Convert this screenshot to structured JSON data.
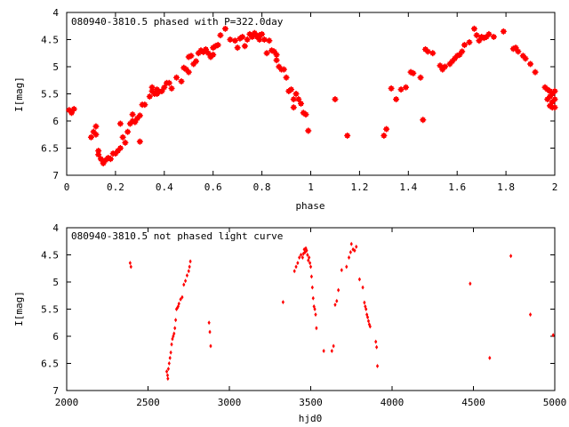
{
  "chart_data": [
    {
      "type": "scatter",
      "title": "080940-3810.5 phased with P=322.0day",
      "xlabel": "phase",
      "ylabel": "I[mag]",
      "xlim": [
        0,
        2
      ],
      "ylim": [
        7,
        4
      ],
      "y_inverted": true,
      "xticks": [
        "0",
        "0.2",
        "0.4",
        "0.6",
        "0.8",
        "1",
        "1.2",
        "1.4",
        "1.6",
        "1.8",
        "2"
      ],
      "yticks": [
        "4",
        "4.5",
        "5",
        "5.5",
        "6",
        "6.5",
        "7"
      ],
      "marker": "star",
      "color": "#ff0000",
      "grid": false,
      "points": [
        [
          0.01,
          5.8
        ],
        [
          0.02,
          5.85
        ],
        [
          0.03,
          5.78
        ],
        [
          0.1,
          6.3
        ],
        [
          0.11,
          6.2
        ],
        [
          0.12,
          6.1
        ],
        [
          0.12,
          6.25
        ],
        [
          0.13,
          6.55
        ],
        [
          0.13,
          6.62
        ],
        [
          0.14,
          6.7
        ],
        [
          0.15,
          6.75
        ],
        [
          0.15,
          6.78
        ],
        [
          0.16,
          6.72
        ],
        [
          0.17,
          6.68
        ],
        [
          0.18,
          6.7
        ],
        [
          0.19,
          6.6
        ],
        [
          0.2,
          6.6
        ],
        [
          0.21,
          6.55
        ],
        [
          0.22,
          6.5
        ],
        [
          0.22,
          6.05
        ],
        [
          0.23,
          6.3
        ],
        [
          0.24,
          6.4
        ],
        [
          0.25,
          6.2
        ],
        [
          0.26,
          6.05
        ],
        [
          0.27,
          6.0
        ],
        [
          0.27,
          5.88
        ],
        [
          0.28,
          6.02
        ],
        [
          0.29,
          5.95
        ],
        [
          0.3,
          5.9
        ],
        [
          0.3,
          6.38
        ],
        [
          0.31,
          5.7
        ],
        [
          0.32,
          5.7
        ],
        [
          0.34,
          5.55
        ],
        [
          0.35,
          5.45
        ],
        [
          0.35,
          5.38
        ],
        [
          0.36,
          5.5
        ],
        [
          0.37,
          5.42
        ],
        [
          0.37,
          5.5
        ],
        [
          0.38,
          5.46
        ],
        [
          0.39,
          5.45
        ],
        [
          0.4,
          5.38
        ],
        [
          0.41,
          5.3
        ],
        [
          0.42,
          5.3
        ],
        [
          0.43,
          5.4
        ],
        [
          0.45,
          5.2
        ],
        [
          0.47,
          5.27
        ],
        [
          0.48,
          5.02
        ],
        [
          0.49,
          5.05
        ],
        [
          0.5,
          5.1
        ],
        [
          0.5,
          4.82
        ],
        [
          0.51,
          4.8
        ],
        [
          0.52,
          4.95
        ],
        [
          0.53,
          4.9
        ],
        [
          0.54,
          4.75
        ],
        [
          0.55,
          4.7
        ],
        [
          0.56,
          4.73
        ],
        [
          0.57,
          4.68
        ],
        [
          0.58,
          4.75
        ],
        [
          0.59,
          4.82
        ],
        [
          0.6,
          4.78
        ],
        [
          0.6,
          4.65
        ],
        [
          0.61,
          4.62
        ],
        [
          0.62,
          4.6
        ],
        [
          0.63,
          4.42
        ],
        [
          0.65,
          4.3
        ],
        [
          0.67,
          4.5
        ],
        [
          0.69,
          4.52
        ],
        [
          0.7,
          4.65
        ],
        [
          0.71,
          4.48
        ],
        [
          0.72,
          4.45
        ],
        [
          0.73,
          4.62
        ],
        [
          0.74,
          4.5
        ],
        [
          0.75,
          4.4
        ],
        [
          0.76,
          4.45
        ],
        [
          0.77,
          4.38
        ],
        [
          0.78,
          4.45
        ],
        [
          0.79,
          4.42
        ],
        [
          0.79,
          4.5
        ],
        [
          0.8,
          4.4
        ],
        [
          0.81,
          4.5
        ],
        [
          0.82,
          4.75
        ],
        [
          0.83,
          4.52
        ],
        [
          0.84,
          4.7
        ],
        [
          0.85,
          4.72
        ],
        [
          0.86,
          4.78
        ],
        [
          0.86,
          4.88
        ],
        [
          0.87,
          5.0
        ],
        [
          0.88,
          5.05
        ],
        [
          0.89,
          5.05
        ],
        [
          0.9,
          5.2
        ],
        [
          0.91,
          5.45
        ],
        [
          0.92,
          5.42
        ],
        [
          0.93,
          5.6
        ],
        [
          0.93,
          5.75
        ],
        [
          0.94,
          5.5
        ],
        [
          0.95,
          5.6
        ],
        [
          0.96,
          5.68
        ],
        [
          0.97,
          5.85
        ],
        [
          0.98,
          5.88
        ],
        [
          0.99,
          6.18
        ],
        [
          1.1,
          5.6
        ],
        [
          1.15,
          6.27
        ],
        [
          1.3,
          6.27
        ],
        [
          1.31,
          6.15
        ],
        [
          1.33,
          5.4
        ],
        [
          1.35,
          5.6
        ],
        [
          1.37,
          5.42
        ],
        [
          1.39,
          5.38
        ],
        [
          1.41,
          5.1
        ],
        [
          1.42,
          5.12
        ],
        [
          1.45,
          5.2
        ],
        [
          1.46,
          5.98
        ],
        [
          1.47,
          4.68
        ],
        [
          1.48,
          4.72
        ],
        [
          1.5,
          4.75
        ],
        [
          1.53,
          4.98
        ],
        [
          1.54,
          5.05
        ],
        [
          1.55,
          5.0
        ],
        [
          1.57,
          4.95
        ],
        [
          1.58,
          4.9
        ],
        [
          1.59,
          4.85
        ],
        [
          1.6,
          4.8
        ],
        [
          1.61,
          4.78
        ],
        [
          1.62,
          4.72
        ],
        [
          1.63,
          4.6
        ],
        [
          1.65,
          4.55
        ],
        [
          1.67,
          4.3
        ],
        [
          1.68,
          4.42
        ],
        [
          1.69,
          4.52
        ],
        [
          1.7,
          4.45
        ],
        [
          1.71,
          4.47
        ],
        [
          1.72,
          4.45
        ],
        [
          1.73,
          4.4
        ],
        [
          1.75,
          4.45
        ],
        [
          1.79,
          4.35
        ],
        [
          1.83,
          4.67
        ],
        [
          1.84,
          4.65
        ],
        [
          1.85,
          4.72
        ],
        [
          1.87,
          4.8
        ],
        [
          1.88,
          4.85
        ],
        [
          1.9,
          4.95
        ],
        [
          1.92,
          5.1
        ],
        [
          1.96,
          5.38
        ],
        [
          1.97,
          5.42
        ],
        [
          1.97,
          5.6
        ],
        [
          1.98,
          5.45
        ],
        [
          1.98,
          5.55
        ],
        [
          1.98,
          5.72
        ],
        [
          1.99,
          5.5
        ],
        [
          1.99,
          5.65
        ],
        [
          1.99,
          5.75
        ],
        [
          2.0,
          5.45
        ],
        [
          2.0,
          5.6
        ],
        [
          2.0,
          5.75
        ]
      ]
    },
    {
      "type": "scatter",
      "title": "080940-3810.5 not phased light curve",
      "xlabel": "hjd0",
      "ylabel": "I[mag]",
      "xlim": [
        2000,
        5000
      ],
      "ylim": [
        7,
        4
      ],
      "y_inverted": true,
      "xticks": [
        "2000",
        "2500",
        "3000",
        "3500",
        "4000",
        "4500",
        "5000"
      ],
      "yticks": [
        "4",
        "4.5",
        "5",
        "5.5",
        "6",
        "6.5",
        "7"
      ],
      "marker": "diamond",
      "color": "#ff0000",
      "grid": false,
      "points": [
        [
          2390,
          4.65
        ],
        [
          2395,
          4.72
        ],
        [
          2615,
          6.65
        ],
        [
          2620,
          6.72
        ],
        [
          2622,
          6.78
        ],
        [
          2625,
          6.6
        ],
        [
          2630,
          6.5
        ],
        [
          2635,
          6.4
        ],
        [
          2640,
          6.3
        ],
        [
          2645,
          6.15
        ],
        [
          2650,
          6.05
        ],
        [
          2655,
          6.0
        ],
        [
          2660,
          5.95
        ],
        [
          2665,
          5.85
        ],
        [
          2670,
          5.7
        ],
        [
          2675,
          5.5
        ],
        [
          2680,
          5.48
        ],
        [
          2685,
          5.45
        ],
        [
          2690,
          5.4
        ],
        [
          2700,
          5.32
        ],
        [
          2710,
          5.28
        ],
        [
          2720,
          5.05
        ],
        [
          2730,
          4.98
        ],
        [
          2740,
          4.88
        ],
        [
          2750,
          4.8
        ],
        [
          2755,
          4.72
        ],
        [
          2760,
          4.62
        ],
        [
          2875,
          5.75
        ],
        [
          2880,
          5.92
        ],
        [
          2885,
          6.18
        ],
        [
          3330,
          5.37
        ],
        [
          3400,
          4.8
        ],
        [
          3410,
          4.72
        ],
        [
          3420,
          4.65
        ],
        [
          3430,
          4.55
        ],
        [
          3440,
          4.5
        ],
        [
          3450,
          4.55
        ],
        [
          3455,
          4.48
        ],
        [
          3460,
          4.4
        ],
        [
          3465,
          4.45
        ],
        [
          3470,
          4.38
        ],
        [
          3475,
          4.42
        ],
        [
          3480,
          4.5
        ],
        [
          3485,
          4.6
        ],
        [
          3490,
          4.55
        ],
        [
          3495,
          4.65
        ],
        [
          3500,
          4.72
        ],
        [
          3505,
          4.9
        ],
        [
          3510,
          5.1
        ],
        [
          3515,
          5.3
        ],
        [
          3520,
          5.45
        ],
        [
          3525,
          5.5
        ],
        [
          3530,
          5.6
        ],
        [
          3535,
          5.85
        ],
        [
          3580,
          6.27
        ],
        [
          3630,
          6.27
        ],
        [
          3640,
          6.18
        ],
        [
          3650,
          5.42
        ],
        [
          3660,
          5.35
        ],
        [
          3670,
          5.15
        ],
        [
          3690,
          4.78
        ],
        [
          3720,
          4.72
        ],
        [
          3735,
          4.55
        ],
        [
          3745,
          4.45
        ],
        [
          3750,
          4.3
        ],
        [
          3760,
          4.4
        ],
        [
          3770,
          4.42
        ],
        [
          3780,
          4.35
        ],
        [
          3800,
          4.95
        ],
        [
          3820,
          5.1
        ],
        [
          3830,
          5.38
        ],
        [
          3835,
          5.45
        ],
        [
          3840,
          5.5
        ],
        [
          3845,
          5.6
        ],
        [
          3850,
          5.65
        ],
        [
          3855,
          5.72
        ],
        [
          3860,
          5.78
        ],
        [
          3865,
          5.82
        ],
        [
          3900,
          6.1
        ],
        [
          3905,
          6.2
        ],
        [
          3910,
          6.55
        ],
        [
          4480,
          5.03
        ],
        [
          4600,
          6.4
        ],
        [
          4730,
          4.52
        ],
        [
          4850,
          5.6
        ],
        [
          4990,
          5.98
        ]
      ]
    }
  ]
}
